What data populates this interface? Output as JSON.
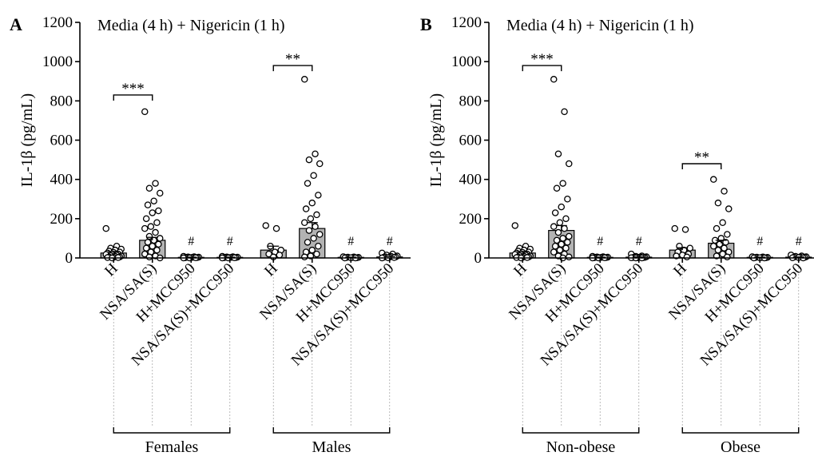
{
  "colors": {
    "bar_fill": "#b3b3b3",
    "point_fill": "#ffffff",
    "axis": "#000000"
  },
  "chart_data": [
    {
      "type": "bar",
      "panel_label": "A",
      "title": "Media (4 h) + Nigericin (1 h)",
      "ylabel": "IL-1β (pg/mL)",
      "ylim": [
        0,
        1200
      ],
      "yticks": [
        "0",
        "200",
        "400",
        "600",
        "800",
        "1000",
        "1200"
      ],
      "categories": [
        "H",
        "NSA/SA(S)",
        "H+MCC950",
        "NSA/SA(S)+MCC950",
        "H",
        "NSA/SA(S)",
        "H+MCC950",
        "NSA/SA(S)+MCC950"
      ],
      "groups": [
        {
          "label": "Females",
          "categories": [
            0,
            1,
            2,
            3
          ]
        },
        {
          "label": "Males",
          "categories": [
            4,
            5,
            6,
            7
          ]
        }
      ],
      "values": [
        25,
        90,
        3,
        3,
        40,
        150,
        3,
        5
      ],
      "errors": [
        8,
        15,
        1,
        1,
        20,
        30,
        1,
        2
      ],
      "points": [
        [
          150,
          60,
          50,
          45,
          40,
          35,
          30,
          28,
          25,
          20,
          20,
          18,
          15,
          12,
          10,
          8,
          5,
          5,
          3,
          2,
          2,
          0
        ],
        [
          745,
          380,
          355,
          330,
          290,
          270,
          240,
          230,
          200,
          180,
          160,
          150,
          130,
          110,
          100,
          90,
          80,
          70,
          60,
          50,
          40,
          30,
          20,
          10,
          5,
          0
        ],
        [
          8,
          6,
          5,
          4,
          3,
          3,
          2,
          2,
          1,
          1,
          0,
          0
        ],
        [
          8,
          6,
          5,
          4,
          3,
          3,
          2,
          2,
          1,
          1,
          0,
          0
        ],
        [
          165,
          150,
          60,
          40,
          30,
          20,
          15,
          5
        ],
        [
          910,
          530,
          500,
          480,
          420,
          380,
          320,
          280,
          250,
          220,
          200,
          180,
          160,
          140,
          120,
          100,
          80,
          60,
          40,
          30,
          20,
          10,
          5
        ],
        [
          6,
          5,
          4,
          3,
          2,
          2,
          1,
          1,
          0,
          0
        ],
        [
          25,
          20,
          15,
          10,
          8,
          6,
          5,
          4,
          3,
          2,
          1,
          0
        ]
      ],
      "annotations": [
        {
          "from": 0,
          "to": 1,
          "text": "***",
          "y": 830
        },
        {
          "from": 4,
          "to": 5,
          "text": "**",
          "y": 980
        }
      ],
      "hash_marks": [
        {
          "category": 2,
          "text": "#"
        },
        {
          "category": 3,
          "text": "#"
        },
        {
          "category": 6,
          "text": "#"
        },
        {
          "category": 7,
          "text": "#"
        }
      ]
    },
    {
      "type": "bar",
      "panel_label": "B",
      "title": "Media (4 h) + Nigericin (1 h)",
      "ylabel": "IL-1β (pg/mL)",
      "ylim": [
        0,
        1200
      ],
      "yticks": [
        "0",
        "200",
        "400",
        "600",
        "800",
        "1000",
        "1200"
      ],
      "categories": [
        "H",
        "NSA/SA(S)",
        "H+MCC950",
        "NSA/SA(S)+MCC950",
        "H",
        "NSA/SA(S)",
        "H+MCC950",
        "NSA/SA(S)+MCC950"
      ],
      "groups": [
        {
          "label": "Non-obese",
          "categories": [
            0,
            1,
            2,
            3
          ]
        },
        {
          "label": "Obese",
          "categories": [
            4,
            5,
            6,
            7
          ]
        }
      ],
      "values": [
        25,
        140,
        3,
        4,
        40,
        75,
        3,
        4
      ],
      "errors": [
        8,
        25,
        1,
        1,
        12,
        15,
        1,
        1
      ],
      "points": [
        [
          165,
          60,
          50,
          45,
          40,
          35,
          30,
          28,
          25,
          20,
          20,
          18,
          15,
          12,
          10,
          8,
          5,
          5,
          3,
          2,
          2,
          0
        ],
        [
          910,
          745,
          530,
          480,
          380,
          355,
          300,
          260,
          230,
          200,
          180,
          160,
          150,
          130,
          110,
          100,
          90,
          80,
          70,
          60,
          50,
          40,
          30,
          20,
          10,
          5,
          0
        ],
        [
          8,
          6,
          5,
          4,
          3,
          3,
          2,
          2,
          1,
          1,
          0,
          0
        ],
        [
          20,
          10,
          8,
          6,
          5,
          4,
          3,
          3,
          2,
          2,
          1,
          1,
          0,
          0
        ],
        [
          150,
          145,
          60,
          50,
          40,
          30,
          20,
          15,
          10,
          5
        ],
        [
          400,
          340,
          280,
          250,
          180,
          150,
          120,
          100,
          90,
          80,
          70,
          60,
          50,
          40,
          30,
          20,
          10,
          5
        ],
        [
          6,
          5,
          4,
          3,
          2,
          2,
          1,
          1,
          0,
          0
        ],
        [
          15,
          10,
          8,
          6,
          5,
          4,
          3,
          2,
          1,
          0
        ]
      ],
      "annotations": [
        {
          "from": 0,
          "to": 1,
          "text": "***",
          "y": 980
        },
        {
          "from": 4,
          "to": 5,
          "text": "**",
          "y": 480
        }
      ],
      "hash_marks": [
        {
          "category": 2,
          "text": "#"
        },
        {
          "category": 3,
          "text": "#"
        },
        {
          "category": 6,
          "text": "#"
        },
        {
          "category": 7,
          "text": "#"
        }
      ]
    }
  ]
}
